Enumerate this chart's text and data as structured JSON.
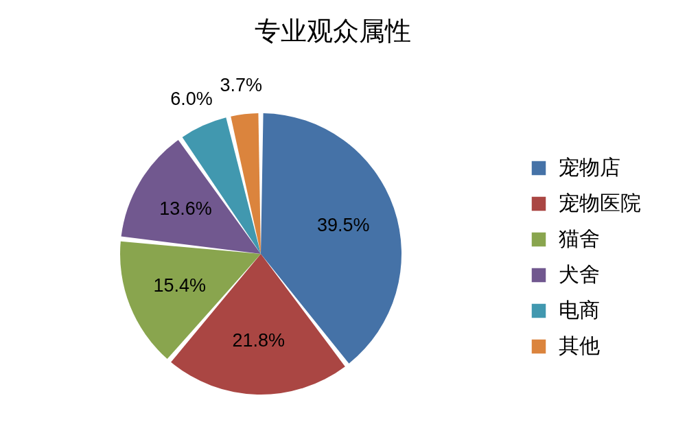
{
  "chart_data": {
    "type": "pie",
    "title": "专业观众属性",
    "categories": [
      "宠物店",
      "宠物医院",
      "猫舍",
      "犬舍",
      "电商",
      "其他"
    ],
    "values": [
      39.5,
      21.8,
      15.4,
      13.6,
      6.0,
      3.7
    ],
    "value_labels": [
      "39.5%",
      "21.8%",
      "15.4%",
      "13.6%",
      "6.0%",
      "3.7%"
    ],
    "colors": [
      "#4572a7",
      "#aa4643",
      "#89a54e",
      "#71588f",
      "#4198af",
      "#db843d"
    ],
    "legend": "right"
  }
}
